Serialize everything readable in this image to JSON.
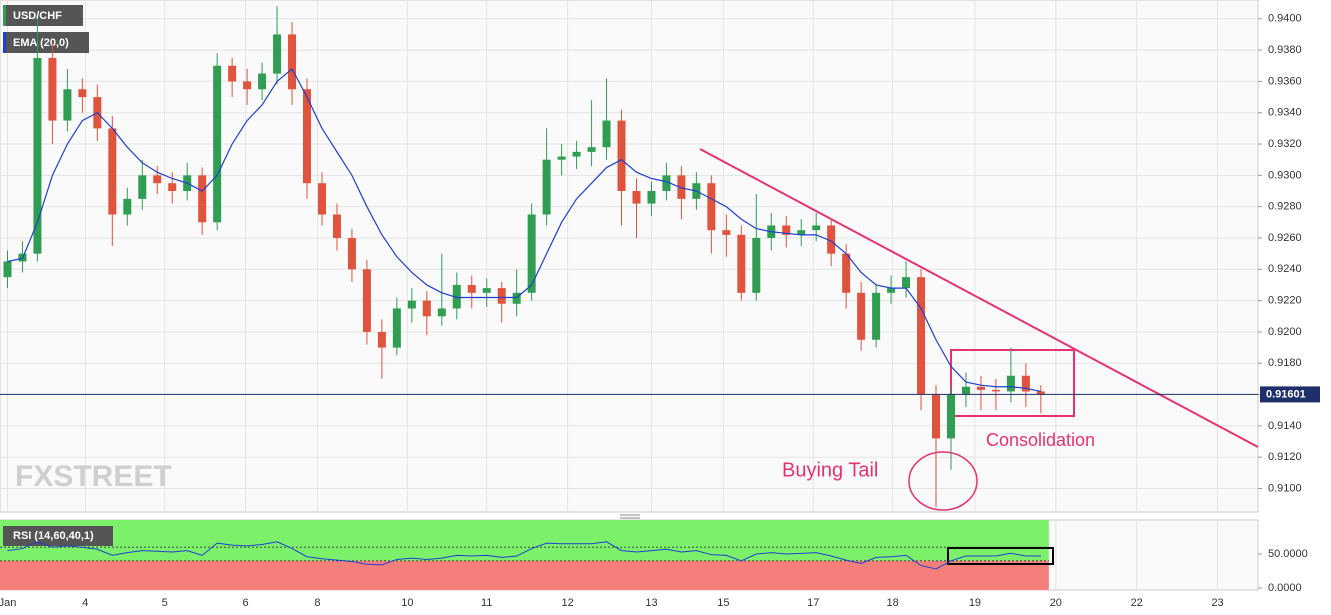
{
  "chart_data": {
    "type": "candlestick",
    "title": "USD/CHF",
    "watermark": "FXSTREET",
    "up_color": "#2f9e52",
    "down_color": "#e0533d",
    "grid": true,
    "xlim": [
      0,
      84
    ],
    "xticks": [
      {
        "value": 0.5,
        "label": "Jan"
      },
      {
        "value": 5.7,
        "label": "4"
      },
      {
        "value": 11,
        "label": "5"
      },
      {
        "value": 16.4,
        "label": "6"
      },
      {
        "value": 21.2,
        "label": "8"
      },
      {
        "value": 27.2,
        "label": "10"
      },
      {
        "value": 32.5,
        "label": "11"
      },
      {
        "value": 37.9,
        "label": "12"
      },
      {
        "value": 43.5,
        "label": "13"
      },
      {
        "value": 48.3,
        "label": "15"
      },
      {
        "value": 54.3,
        "label": "17"
      },
      {
        "value": 59.6,
        "label": "18"
      },
      {
        "value": 65.1,
        "label": "19"
      },
      {
        "value": 70.5,
        "label": "20"
      },
      {
        "value": 75.9,
        "label": "22"
      },
      {
        "value": 81.3,
        "label": "23"
      }
    ],
    "ylim": [
      0.9085,
      0.9412
    ],
    "yticks": [
      {
        "value": 0.91,
        "label": "0.9100"
      },
      {
        "value": 0.912,
        "label": "0.9120"
      },
      {
        "value": 0.914,
        "label": "0.9140"
      },
      {
        "value": 0.916,
        "label": "0.9160"
      },
      {
        "value": 0.918,
        "label": "0.9180"
      },
      {
        "value": 0.92,
        "label": "0.9200"
      },
      {
        "value": 0.922,
        "label": "0.9220"
      },
      {
        "value": 0.924,
        "label": "0.9240"
      },
      {
        "value": 0.926,
        "label": "0.9260"
      },
      {
        "value": 0.928,
        "label": "0.9280"
      },
      {
        "value": 0.93,
        "label": "0.9300"
      },
      {
        "value": 0.932,
        "label": "0.9320"
      },
      {
        "value": 0.934,
        "label": "0.9340"
      },
      {
        "value": 0.936,
        "label": "0.9360"
      },
      {
        "value": 0.938,
        "label": "0.9380"
      },
      {
        "value": 0.94,
        "label": "0.9400"
      }
    ],
    "last_price": 0.91601,
    "x": [
      0.5,
      1.5,
      2.5,
      3.5,
      4.5,
      5.5,
      6.5,
      7.5,
      8.5,
      9.5,
      10.5,
      11.5,
      12.5,
      13.5,
      14.5,
      15.5,
      16.5,
      17.5,
      18.5,
      19.5,
      20.5,
      21.5,
      22.5,
      23.5,
      24.5,
      25.5,
      26.5,
      27.5,
      28.5,
      29.5,
      30.5,
      31.5,
      32.5,
      33.5,
      34.5,
      35.5,
      36.5,
      37.5,
      38.5,
      39.5,
      40.5,
      41.5,
      42.5,
      43.5,
      44.5,
      45.5,
      46.5,
      47.5,
      48.5,
      49.5,
      50.5,
      51.5,
      52.5,
      53.5,
      54.5,
      55.5,
      56.5,
      57.5,
      58.5,
      59.5,
      60.5,
      61.5,
      62.5,
      63.5,
      64.5,
      65.5,
      66.5,
      67.5,
      68.5,
      69.5
    ],
    "open": [
      0.9235,
      0.9245,
      0.925,
      0.9375,
      0.9335,
      0.9355,
      0.935,
      0.933,
      0.9275,
      0.9285,
      0.93,
      0.9295,
      0.929,
      0.93,
      0.927,
      0.937,
      0.936,
      0.9355,
      0.9365,
      0.939,
      0.9355,
      0.9295,
      0.9275,
      0.926,
      0.924,
      0.92,
      0.919,
      0.9215,
      0.922,
      0.921,
      0.9215,
      0.923,
      0.9225,
      0.9228,
      0.9218,
      0.9225,
      0.9275,
      0.931,
      0.9312,
      0.9315,
      0.9318,
      0.9335,
      0.929,
      0.9282,
      0.929,
      0.93,
      0.9285,
      0.9295,
      0.9265,
      0.9262,
      0.9225,
      0.926,
      0.9268,
      0.9262,
      0.9265,
      0.9268,
      0.925,
      0.9225,
      0.9195,
      0.9225,
      0.9228,
      0.9235,
      0.916,
      0.9132,
      0.916,
      0.9165,
      0.9163,
      0.9162,
      0.9172,
      0.9162
    ],
    "high": [
      0.9252,
      0.9258,
      0.94,
      0.9385,
      0.9368,
      0.9362,
      0.9358,
      0.9338,
      0.9292,
      0.931,
      0.9306,
      0.9302,
      0.9308,
      0.9305,
      0.9378,
      0.9375,
      0.9368,
      0.9372,
      0.9408,
      0.9398,
      0.9362,
      0.9302,
      0.9282,
      0.9266,
      0.9246,
      0.9208,
      0.9222,
      0.9228,
      0.9226,
      0.925,
      0.9238,
      0.9236,
      0.9234,
      0.9232,
      0.924,
      0.9282,
      0.933,
      0.932,
      0.9322,
      0.9348,
      0.9362,
      0.9342,
      0.9298,
      0.9296,
      0.9308,
      0.9306,
      0.9302,
      0.93,
      0.9275,
      0.9268,
      0.9288,
      0.9276,
      0.9274,
      0.9272,
      0.9276,
      0.9272,
      0.9256,
      0.9232,
      0.923,
      0.9236,
      0.9245,
      0.924,
      0.9166,
      0.9165,
      0.9174,
      0.9172,
      0.917,
      0.919,
      0.918,
      0.9166
    ],
    "low": [
      0.9228,
      0.9238,
      0.9245,
      0.932,
      0.9328,
      0.934,
      0.9322,
      0.9255,
      0.9268,
      0.9278,
      0.9288,
      0.9282,
      0.9284,
      0.9262,
      0.9265,
      0.935,
      0.9345,
      0.9348,
      0.9358,
      0.9345,
      0.9285,
      0.9268,
      0.9252,
      0.9232,
      0.9192,
      0.917,
      0.9185,
      0.9206,
      0.9198,
      0.9204,
      0.9208,
      0.9215,
      0.9216,
      0.9206,
      0.921,
      0.922,
      0.9268,
      0.93,
      0.9304,
      0.9306,
      0.931,
      0.9268,
      0.926,
      0.9274,
      0.9284,
      0.9272,
      0.9278,
      0.925,
      0.9248,
      0.922,
      0.922,
      0.9252,
      0.9254,
      0.9255,
      0.9258,
      0.9242,
      0.9215,
      0.9188,
      0.919,
      0.9218,
      0.9222,
      0.915,
      0.9088,
      0.9112,
      0.9152,
      0.915,
      0.915,
      0.9155,
      0.9152,
      0.9148
    ],
    "close": [
      0.9245,
      0.925,
      0.9375,
      0.9335,
      0.9355,
      0.935,
      0.933,
      0.9275,
      0.9285,
      0.93,
      0.9295,
      0.929,
      0.93,
      0.927,
      0.937,
      0.936,
      0.9355,
      0.9365,
      0.939,
      0.9355,
      0.9295,
      0.9275,
      0.926,
      0.924,
      0.92,
      0.919,
      0.9215,
      0.922,
      0.921,
      0.9215,
      0.923,
      0.9225,
      0.9228,
      0.9218,
      0.9225,
      0.9275,
      0.931,
      0.9312,
      0.9315,
      0.9318,
      0.9335,
      0.929,
      0.9282,
      0.929,
      0.93,
      0.9285,
      0.9295,
      0.9265,
      0.9262,
      0.9225,
      0.926,
      0.9268,
      0.9262,
      0.9265,
      0.9268,
      0.925,
      0.9225,
      0.9195,
      0.9225,
      0.9228,
      0.9235,
      0.916,
      0.9132,
      0.916,
      0.9165,
      0.9163,
      0.9162,
      0.9172,
      0.9162,
      0.916
    ],
    "ema": {
      "name": "EMA (20,0)",
      "color": "#1f3fd1",
      "values": [
        0.9245,
        0.9247,
        0.927,
        0.93,
        0.932,
        0.9335,
        0.934,
        0.933,
        0.9318,
        0.9308,
        0.9302,
        0.9298,
        0.9295,
        0.929,
        0.93,
        0.932,
        0.9335,
        0.9345,
        0.936,
        0.9368,
        0.935,
        0.933,
        0.9315,
        0.93,
        0.928,
        0.9262,
        0.9248,
        0.9238,
        0.923,
        0.9225,
        0.9222,
        0.9222,
        0.9222,
        0.9222,
        0.9222,
        0.923,
        0.925,
        0.927,
        0.9285,
        0.9295,
        0.9305,
        0.931,
        0.9302,
        0.9298,
        0.9296,
        0.9292,
        0.929,
        0.9285,
        0.928,
        0.9272,
        0.9266,
        0.9264,
        0.9263,
        0.9262,
        0.9262,
        0.9258,
        0.925,
        0.9238,
        0.923,
        0.9228,
        0.9228,
        0.9215,
        0.9195,
        0.9178,
        0.9168,
        0.9166,
        0.9165,
        0.9165,
        0.9164,
        0.9162
      ]
    },
    "annotations": [
      "Buying Tail",
      "Consolidation"
    ],
    "rsi": {
      "name": "RSI (14,60,40,1)",
      "color": "#1f3fd1",
      "levels": [
        60,
        40
      ],
      "upper_color": "#7cf06a",
      "lower_color": "#f57f7b",
      "ylim": [
        0,
        100
      ],
      "yticks": [
        {
          "value": 50,
          "label": "50.0000"
        },
        {
          "value": 0,
          "label": "0.0000"
        }
      ],
      "values": [
        55,
        58,
        68,
        60,
        62,
        60,
        57,
        48,
        52,
        55,
        54,
        53,
        55,
        48,
        66,
        63,
        62,
        64,
        68,
        58,
        46,
        43,
        41,
        39,
        35,
        34,
        42,
        44,
        42,
        44,
        48,
        47,
        48,
        45,
        47,
        58,
        66,
        65,
        65,
        65,
        68,
        55,
        53,
        55,
        57,
        53,
        55,
        49,
        48,
        40,
        50,
        52,
        50,
        51,
        52,
        47,
        41,
        36,
        45,
        46,
        48,
        33,
        28,
        40,
        47,
        47,
        47,
        51,
        47,
        47
      ]
    }
  }
}
